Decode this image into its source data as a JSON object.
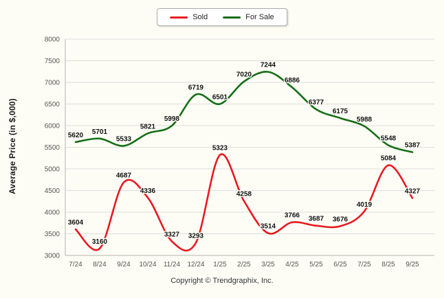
{
  "ylabel": "Average Price (in $,000)",
  "footer": "Copyright © Trendgraphix, Inc.",
  "legend": {
    "items": [
      {
        "label": "Sold",
        "color": "#e8191f"
      },
      {
        "label": "For Sale",
        "color": "#156e15"
      }
    ]
  },
  "chart_data": {
    "type": "line",
    "title": "",
    "xlabel": "",
    "ylabel": "Average Price (in $,000)",
    "categories": [
      "7/24",
      "8/24",
      "9/24",
      "10/24",
      "11/24",
      "12/24",
      "1/25",
      "2/25",
      "3/25",
      "4/25",
      "5/25",
      "6/25",
      "7/25",
      "8/25",
      "9/25"
    ],
    "series": [
      {
        "name": "Sold",
        "color": "#e8191f",
        "values": [
          3604,
          3160,
          4687,
          4336,
          3327,
          3293,
          5323,
          4258,
          3514,
          3766,
          3687,
          3676,
          4019,
          5084,
          4327
        ]
      },
      {
        "name": "For Sale",
        "color": "#156e15",
        "values": [
          5620,
          5701,
          5533,
          5821,
          5998,
          6719,
          6501,
          7020,
          7244,
          6886,
          6377,
          6175,
          5988,
          5548,
          5387
        ]
      }
    ],
    "ylim": [
      3000,
      8000
    ],
    "ytick_step": 500,
    "grid": true,
    "smooth": true,
    "legend_position": "top-center",
    "point_labels": true
  }
}
